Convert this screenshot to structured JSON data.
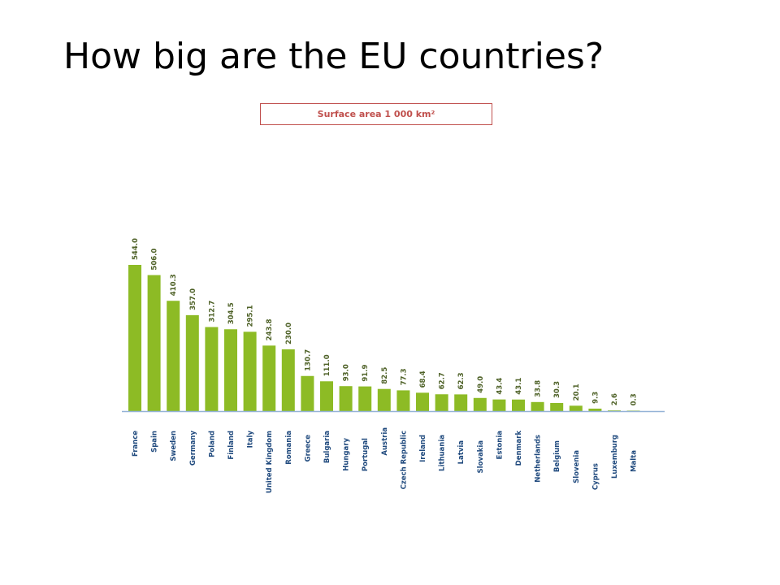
{
  "slide": {
    "title": "How big are the EU countries?"
  },
  "colors": {
    "bar": "#8dbb25",
    "baseline": "#95b3d7",
    "value_label": "#4f6228",
    "category_label": "#1f497d",
    "subtitle": "#c0504d"
  },
  "chart_data": {
    "type": "bar",
    "title": "Surface area 1 000 km²",
    "xlabel": "",
    "ylabel": "",
    "ylim": [
      0,
      544
    ],
    "grid": false,
    "legend": "none",
    "categories": [
      "France",
      "Spain",
      "Sweden",
      "Germany",
      "Poland",
      "Finland",
      "Italy",
      "United Kingdom",
      "Romania",
      "Greece",
      "Bulgaria",
      "Hungary",
      "Portugal",
      "Austria",
      "Czech Republic",
      "Ireland",
      "Lithuania",
      "Latvia",
      "Slovakia",
      "Estonia",
      "Denmark",
      "Netherlands",
      "Belgium",
      "Slovenia",
      "Cyprus",
      "Luxemburg",
      "Malta"
    ],
    "values": [
      544.0,
      506.0,
      410.3,
      357.0,
      312.7,
      304.5,
      295.1,
      243.8,
      230.0,
      130.7,
      111.0,
      93.0,
      91.9,
      82.5,
      77.3,
      68.4,
      62.7,
      62.3,
      49.0,
      43.4,
      43.1,
      33.8,
      30.3,
      20.1,
      9.3,
      2.6,
      0.3
    ],
    "value_labels": [
      "544.0",
      "506.0",
      "410.3",
      "357.0",
      "312.7",
      "304.5",
      "295.1",
      "243.8",
      "230.0",
      "130.7",
      "111.0",
      "93.0",
      "91.9",
      "82.5",
      "77.3",
      "68.4",
      "62.7",
      "62.3",
      "49.0",
      "43.4",
      "43.1",
      "33.8",
      "30.3",
      "20.1",
      "9.3",
      "2.6",
      "0.3"
    ]
  }
}
